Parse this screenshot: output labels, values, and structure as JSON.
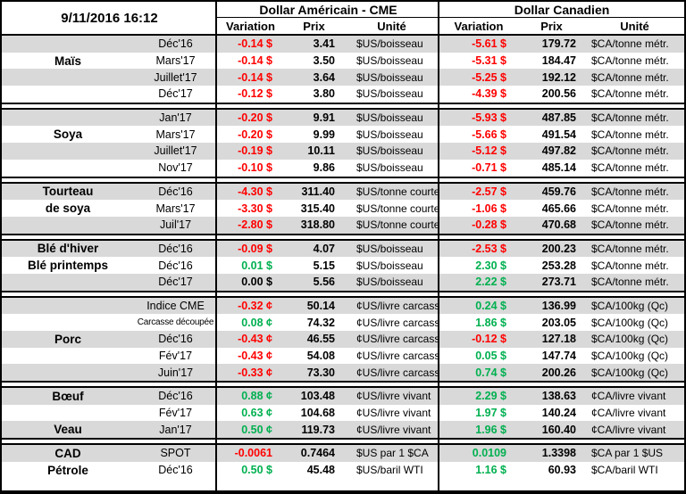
{
  "header": {
    "datetime": "9/11/2016 16:12",
    "usd_title": "Dollar Américain - CME",
    "cad_title": "Dollar Canadien",
    "columns": {
      "variation": "Variation",
      "prix": "Prix",
      "unite": "Unité"
    }
  },
  "colors": {
    "negative": "#ff0000",
    "positive": "#00b050",
    "neutral": "#000000",
    "row_alt": "#d9d9d9",
    "border": "#000000"
  },
  "sections": [
    {
      "commodity": "Maïs",
      "rows": [
        {
          "name": "",
          "month": "Déc'16",
          "us_var": "-0.14 $",
          "us_prix": "3.41",
          "us_unit": "$US/boisseau",
          "ca_var": "-5.61 $",
          "ca_prix": "179.72",
          "ca_unit": "$CA/tonne métr."
        },
        {
          "name": "Maïs",
          "month": "Mars'17",
          "us_var": "-0.14 $",
          "us_prix": "3.50",
          "us_unit": "$US/boisseau",
          "ca_var": "-5.31 $",
          "ca_prix": "184.47",
          "ca_unit": "$CA/tonne métr."
        },
        {
          "name": "",
          "month": "Juillet'17",
          "us_var": "-0.14 $",
          "us_prix": "3.64",
          "us_unit": "$US/boisseau",
          "ca_var": "-5.25 $",
          "ca_prix": "192.12",
          "ca_unit": "$CA/tonne métr."
        },
        {
          "name": "",
          "month": "Déc'17",
          "us_var": "-0.12 $",
          "us_prix": "3.80",
          "us_unit": "$US/boisseau",
          "ca_var": "-4.39 $",
          "ca_prix": "200.56",
          "ca_unit": "$CA/tonne métr."
        }
      ]
    },
    {
      "commodity": "Soya",
      "rows": [
        {
          "name": "",
          "month": "Jan'17",
          "us_var": "-0.20 $",
          "us_prix": "9.91",
          "us_unit": "$US/boisseau",
          "ca_var": "-5.93 $",
          "ca_prix": "487.85",
          "ca_unit": "$CA/tonne métr."
        },
        {
          "name": "Soya",
          "month": "Mars'17",
          "us_var": "-0.20 $",
          "us_prix": "9.99",
          "us_unit": "$US/boisseau",
          "ca_var": "-5.66 $",
          "ca_prix": "491.54",
          "ca_unit": "$CA/tonne métr."
        },
        {
          "name": "",
          "month": "Juillet'17",
          "us_var": "-0.19 $",
          "us_prix": "10.11",
          "us_unit": "$US/boisseau",
          "ca_var": "-5.12 $",
          "ca_prix": "497.82",
          "ca_unit": "$CA/tonne métr."
        },
        {
          "name": "",
          "month": "Nov'17",
          "us_var": "-0.10 $",
          "us_prix": "9.86",
          "us_unit": "$US/boisseau",
          "ca_var": "-0.71 $",
          "ca_prix": "485.14",
          "ca_unit": "$CA/tonne métr."
        }
      ]
    },
    {
      "commodity": "Tourteau de soya",
      "rows": [
        {
          "name": "Tourteau",
          "month": "Déc'16",
          "us_var": "-4.30 $",
          "us_prix": "311.40",
          "us_unit": "$US/tonne courte",
          "ca_var": "-2.57 $",
          "ca_prix": "459.76",
          "ca_unit": "$CA/tonne métr."
        },
        {
          "name": "de soya",
          "month": "Mars'17",
          "us_var": "-3.30 $",
          "us_prix": "315.40",
          "us_unit": "$US/tonne courte",
          "ca_var": "-1.06 $",
          "ca_prix": "465.66",
          "ca_unit": "$CA/tonne métr."
        },
        {
          "name": "",
          "month": "Juil'17",
          "us_var": "-2.80 $",
          "us_prix": "318.80",
          "us_unit": "$US/tonne courte",
          "ca_var": "-0.28 $",
          "ca_prix": "470.68",
          "ca_unit": "$CA/tonne métr."
        }
      ]
    },
    {
      "commodity": "Blé",
      "rows": [
        {
          "name": "Blé d'hiver",
          "month": "Déc'16",
          "us_var": "-0.09 $",
          "us_prix": "4.07",
          "us_unit": "$US/boisseau",
          "ca_var": "-2.53 $",
          "ca_prix": "200.23",
          "ca_unit": "$CA/tonne métr."
        },
        {
          "name": "Blé printemps",
          "month": "Déc'16",
          "us_var": "0.01 $",
          "us_prix": "5.15",
          "us_unit": "$US/boisseau",
          "ca_var": "2.30 $",
          "ca_prix": "253.28",
          "ca_unit": "$CA/tonne métr."
        },
        {
          "name": "",
          "month": "Déc'17",
          "us_var": "0.00 $",
          "us_prix": "5.56",
          "us_unit": "$US/boisseau",
          "ca_var": "2.22 $",
          "ca_prix": "273.71",
          "ca_unit": "$CA/tonne métr."
        }
      ]
    },
    {
      "commodity": "Porc",
      "rows": [
        {
          "name": "",
          "month": "Indice CME",
          "us_var": "-0.32 ¢",
          "us_prix": "50.14",
          "us_unit": "¢US/livre carcasse",
          "ca_var": "0.24 $",
          "ca_prix": "136.99",
          "ca_unit": "$CA/100kg (Qc)"
        },
        {
          "name": "",
          "month": "Carcasse découpée",
          "month_small": true,
          "us_var": "0.08 ¢",
          "us_prix": "74.32",
          "us_unit": "¢US/livre carcasse",
          "ca_var": "1.86 $",
          "ca_prix": "203.05",
          "ca_unit": "$CA/100kg (Qc)"
        },
        {
          "name": "Porc",
          "month": "Déc'16",
          "us_var": "-0.43 ¢",
          "us_prix": "46.55",
          "us_unit": "¢US/livre carcasse",
          "ca_var": "-0.12 $",
          "ca_prix": "127.18",
          "ca_unit": "$CA/100kg (Qc)"
        },
        {
          "name": "",
          "month": "Fév'17",
          "us_var": "-0.43 ¢",
          "us_prix": "54.08",
          "us_unit": "¢US/livre carcasse",
          "ca_var": "0.05 $",
          "ca_prix": "147.74",
          "ca_unit": "$CA/100kg (Qc)"
        },
        {
          "name": "",
          "month": "Juin'17",
          "us_var": "-0.33 ¢",
          "us_prix": "73.30",
          "us_unit": "¢US/livre carcasse",
          "ca_var": "0.74 $",
          "ca_prix": "200.26",
          "ca_unit": "$CA/100kg (Qc)"
        }
      ]
    },
    {
      "commodity": "Bœuf / Veau",
      "rows": [
        {
          "name": "Bœuf",
          "month": "Déc'16",
          "us_var": "0.88 ¢",
          "us_prix": "103.48",
          "us_unit": "¢US/livre vivant",
          "ca_var": "2.29 $",
          "ca_prix": "138.63",
          "ca_unit": "¢CA/livre vivant"
        },
        {
          "name": "",
          "month": "Fév'17",
          "us_var": "0.63 ¢",
          "us_prix": "104.68",
          "us_unit": "¢US/livre vivant",
          "ca_var": "1.97 $",
          "ca_prix": "140.24",
          "ca_unit": "¢CA/livre vivant"
        },
        {
          "name": "Veau",
          "month": "Jan'17",
          "us_var": "0.50 ¢",
          "us_prix": "119.73",
          "us_unit": "¢US/livre vivant",
          "ca_var": "1.96 $",
          "ca_prix": "160.40",
          "ca_unit": "¢CA/livre vivant"
        }
      ]
    },
    {
      "commodity": "CAD / Pétrole",
      "rows": [
        {
          "name": "CAD",
          "month": "SPOT",
          "us_var": "-0.0061",
          "us_prix": "0.7464",
          "us_unit": "$US par 1 $CA",
          "ca_var": "0.0109",
          "ca_prix": "1.3398",
          "ca_unit": "$CA par 1 $US"
        },
        {
          "name": "Pétrole",
          "month": "Déc'16",
          "us_var": "0.50 $",
          "us_prix": "45.48",
          "us_unit": "$US/baril WTI",
          "ca_var": "1.16 $",
          "ca_prix": "60.93",
          "ca_unit": "$CA/baril WTI"
        }
      ]
    }
  ]
}
